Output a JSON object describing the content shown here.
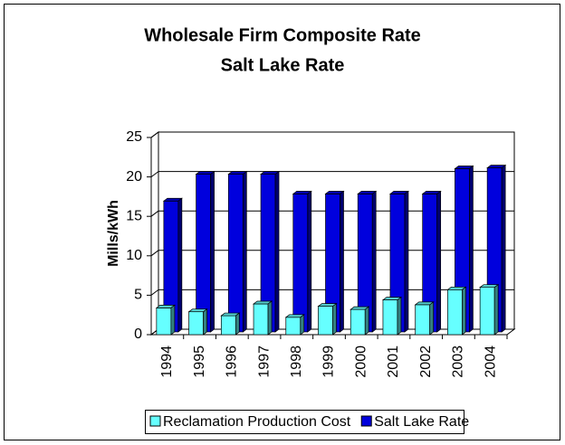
{
  "chart_data": {
    "type": "bar",
    "title": [
      "Wholesale Firm Composite Rate",
      "Salt Lake Rate"
    ],
    "y_label": "Mills/kWh",
    "categories": [
      "1994",
      "1995",
      "1996",
      "1997",
      "1998",
      "1999",
      "2000",
      "2001",
      "2002",
      "2003",
      "2004"
    ],
    "series": [
      {
        "name": "Reclamation Production Cost",
        "color": "#66ffff",
        "values": [
          3.4,
          2.9,
          2.4,
          3.9,
          2.2,
          3.6,
          3.2,
          4.4,
          3.8,
          5.7,
          6.0
        ]
      },
      {
        "name": "Salt Lake Rate",
        "color": "#0000dd",
        "values": [
          16.6,
          20.0,
          20.0,
          20.0,
          17.5,
          17.5,
          17.5,
          17.5,
          17.5,
          20.7,
          20.8
        ]
      }
    ],
    "ylim": [
      0,
      25
    ],
    "yticks": [
      0,
      5,
      10,
      15,
      20,
      25
    ],
    "grid": true,
    "legend": "bottom"
  }
}
